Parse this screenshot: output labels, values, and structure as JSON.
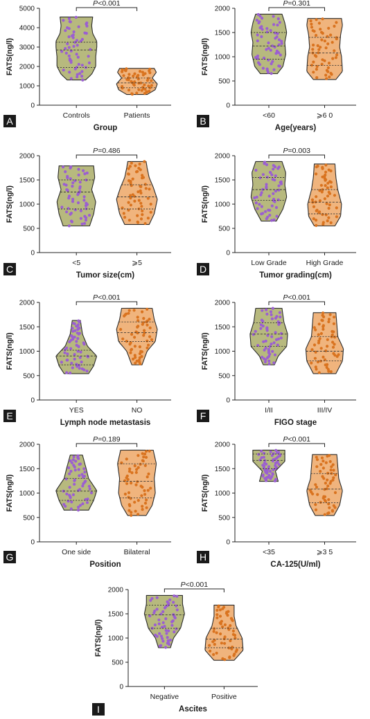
{
  "chart_data": [
    {
      "panel": "A",
      "type": "violin",
      "categories": [
        "Controls",
        "Patients"
      ],
      "xlabel": "Group",
      "ylabel": "FATS(ng/l)",
      "ylim": [
        0,
        5000
      ],
      "yticks": [
        "0",
        "1000",
        "2000",
        "3000",
        "4000",
        "5000"
      ],
      "pvalue": "P<0.001",
      "series": [
        {
          "category": "Controls",
          "min": 1300,
          "max": 4550,
          "q1": 1950,
          "median": 2850,
          "q3": 3250,
          "profile": [
            [
              1300,
              0.45
            ],
            [
              1600,
              0.75
            ],
            [
              2000,
              0.95
            ],
            [
              2500,
              0.95
            ],
            [
              3000,
              1.0
            ],
            [
              3300,
              1.0
            ],
            [
              3700,
              0.8
            ],
            [
              4100,
              0.75
            ],
            [
              4550,
              0.8
            ]
          ]
        },
        {
          "category": "Patients",
          "min": 550,
          "max": 1900,
          "q1": 900,
          "median": 1150,
          "q3": 1400,
          "profile": [
            [
              550,
              0.5
            ],
            [
              800,
              0.9
            ],
            [
              1100,
              1.0
            ],
            [
              1400,
              0.75
            ],
            [
              1700,
              0.95
            ],
            [
              1900,
              0.85
            ]
          ]
        }
      ]
    },
    {
      "panel": "B",
      "type": "violin",
      "categories": [
        "<60",
        "⩾6 0"
      ],
      "xlabel": "Age(years)",
      "ylabel": "FATS(ng/l)",
      "ylim": [
        0,
        2000
      ],
      "yticks": [
        "0",
        "500",
        "1000",
        "1500",
        "2000"
      ],
      "pvalue": "P=0.301",
      "series": [
        {
          "category": "<60",
          "min": 650,
          "max": 1880,
          "q1": 950,
          "median": 1220,
          "q3": 1500,
          "profile": [
            [
              650,
              0.45
            ],
            [
              800,
              0.75
            ],
            [
              1050,
              0.9
            ],
            [
              1300,
              0.85
            ],
            [
              1500,
              0.95
            ],
            [
              1700,
              0.85
            ],
            [
              1880,
              0.7
            ]
          ]
        },
        {
          "category": "⩾6 0",
          "min": 530,
          "max": 1790,
          "q1": 820,
          "median": 1080,
          "q3": 1400,
          "profile": [
            [
              530,
              0.6
            ],
            [
              700,
              0.95
            ],
            [
              1000,
              0.9
            ],
            [
              1200,
              0.8
            ],
            [
              1450,
              0.85
            ],
            [
              1650,
              0.95
            ],
            [
              1790,
              0.9
            ]
          ]
        }
      ]
    },
    {
      "panel": "C",
      "type": "violin",
      "categories": [
        "<5",
        "⩾5"
      ],
      "xlabel": "Tumor size(cm)",
      "ylabel": "FATS(ng/l)",
      "ylim": [
        0,
        2000
      ],
      "yticks": [
        "0",
        "500",
        "1000",
        "1500",
        "2000"
      ],
      "pvalue": "P=0.486",
      "series": [
        {
          "category": "<5",
          "min": 550,
          "max": 1790,
          "q1": 900,
          "median": 1250,
          "q3": 1500,
          "profile": [
            [
              550,
              0.65
            ],
            [
              800,
              0.85
            ],
            [
              1050,
              0.95
            ],
            [
              1300,
              0.75
            ],
            [
              1550,
              0.9
            ],
            [
              1790,
              0.85
            ]
          ]
        },
        {
          "category": "⩾5",
          "min": 580,
          "max": 1880,
          "q1": 900,
          "median": 1150,
          "q3": 1400,
          "profile": [
            [
              580,
              0.6
            ],
            [
              800,
              0.85
            ],
            [
              1100,
              1.0
            ],
            [
              1350,
              0.8
            ],
            [
              1550,
              0.6
            ],
            [
              1750,
              0.5
            ],
            [
              1880,
              0.45
            ]
          ]
        }
      ]
    },
    {
      "panel": "D",
      "type": "violin",
      "categories": [
        "Low Grade",
        "High Grade"
      ],
      "xlabel": "Tumor grading(cm)",
      "ylabel": "FATS(ng/l)",
      "ylim": [
        0,
        2000
      ],
      "yticks": [
        "0",
        "500",
        "1000",
        "1500",
        "2000"
      ],
      "pvalue": "P=0.003",
      "series": [
        {
          "category": "Low Grade",
          "min": 650,
          "max": 1880,
          "q1": 1080,
          "median": 1300,
          "q3": 1550,
          "profile": [
            [
              650,
              0.4
            ],
            [
              900,
              0.75
            ],
            [
              1150,
              0.95
            ],
            [
              1400,
              0.85
            ],
            [
              1650,
              0.9
            ],
            [
              1880,
              0.7
            ]
          ]
        },
        {
          "category": "High Grade",
          "min": 550,
          "max": 1830,
          "q1": 800,
          "median": 1040,
          "q3": 1300,
          "profile": [
            [
              550,
              0.55
            ],
            [
              750,
              0.85
            ],
            [
              1000,
              0.9
            ],
            [
              1300,
              0.7
            ],
            [
              1550,
              0.6
            ],
            [
              1830,
              0.55
            ]
          ]
        }
      ]
    },
    {
      "panel": "E",
      "type": "violin",
      "categories": [
        "YES",
        "NO"
      ],
      "xlabel": "Lymph node metastasis",
      "ylabel": "FATS(ng/l)",
      "ylim": [
        0,
        2000
      ],
      "yticks": [
        "0",
        "500",
        "1000",
        "1500",
        "2000"
      ],
      "pvalue": "P<0.001",
      "series": [
        {
          "category": "YES",
          "min": 540,
          "max": 1630,
          "q1": 720,
          "median": 900,
          "q3": 1020,
          "profile": [
            [
              540,
              0.6
            ],
            [
              700,
              0.85
            ],
            [
              900,
              1.0
            ],
            [
              1100,
              0.55
            ],
            [
              1350,
              0.3
            ],
            [
              1630,
              0.2
            ]
          ]
        },
        {
          "category": "NO",
          "min": 720,
          "max": 1880,
          "q1": 1200,
          "median": 1380,
          "q3": 1600,
          "profile": [
            [
              720,
              0.25
            ],
            [
              1000,
              0.5
            ],
            [
              1200,
              0.9
            ],
            [
              1450,
              1.0
            ],
            [
              1650,
              0.85
            ],
            [
              1880,
              0.75
            ]
          ]
        }
      ]
    },
    {
      "panel": "F",
      "type": "violin",
      "categories": [
        "I/II",
        "III/IV"
      ],
      "xlabel": "FIGO stage",
      "ylabel": "FATS(ng/l)",
      "ylim": [
        0,
        2000
      ],
      "yticks": [
        "0",
        "500",
        "1000",
        "1500",
        "2000"
      ],
      "pvalue": "P<0.001",
      "series": [
        {
          "category": "I/II",
          "min": 720,
          "max": 1880,
          "q1": 1100,
          "median": 1350,
          "q3": 1580,
          "profile": [
            [
              720,
              0.3
            ],
            [
              900,
              0.5
            ],
            [
              1100,
              0.95
            ],
            [
              1350,
              1.0
            ],
            [
              1600,
              0.8
            ],
            [
              1880,
              0.7
            ]
          ]
        },
        {
          "category": "III/IV",
          "min": 540,
          "max": 1790,
          "q1": 800,
          "median": 1000,
          "q3": 1300,
          "profile": [
            [
              540,
              0.6
            ],
            [
              800,
              0.95
            ],
            [
              1050,
              1.0
            ],
            [
              1300,
              0.7
            ],
            [
              1550,
              0.65
            ],
            [
              1790,
              0.6
            ]
          ]
        }
      ]
    },
    {
      "panel": "G",
      "type": "violin",
      "categories": [
        "One side",
        "Bilateral"
      ],
      "xlabel": "Position",
      "ylabel": "FATS(ng/l)",
      "ylim": [
        0,
        2000
      ],
      "yticks": [
        "0",
        "500",
        "1000",
        "1500",
        "2000"
      ],
      "pvalue": "P=0.189",
      "series": [
        {
          "category": "One side",
          "min": 650,
          "max": 1780,
          "q1": 850,
          "median": 1040,
          "q3": 1300,
          "profile": [
            [
              650,
              0.6
            ],
            [
              850,
              0.85
            ],
            [
              1050,
              1.0
            ],
            [
              1300,
              0.6
            ],
            [
              1550,
              0.45
            ],
            [
              1780,
              0.3
            ]
          ]
        },
        {
          "category": "Bilateral",
          "min": 540,
          "max": 1880,
          "q1": 900,
          "median": 1240,
          "q3": 1600,
          "profile": [
            [
              540,
              0.45
            ],
            [
              750,
              0.75
            ],
            [
              1000,
              0.9
            ],
            [
              1300,
              0.85
            ],
            [
              1600,
              0.95
            ],
            [
              1880,
              0.8
            ]
          ]
        }
      ]
    },
    {
      "panel": "H",
      "type": "violin",
      "categories": [
        "<35",
        "⩾3 5"
      ],
      "xlabel": "CA-125(U/ml)",
      "ylabel": "FATS(ng/l)",
      "ylim": [
        0,
        2000
      ],
      "yticks": [
        "0",
        "500",
        "1000",
        "1500",
        "2000"
      ],
      "pvalue": "P<0.001",
      "series": [
        {
          "category": "<35",
          "min": 1240,
          "max": 1880,
          "q1": 1500,
          "median": 1670,
          "q3": 1800,
          "profile": [
            [
              1240,
              0.5
            ],
            [
              1450,
              0.35
            ],
            [
              1650,
              0.85
            ],
            [
              1880,
              0.85
            ]
          ]
        },
        {
          "category": "⩾3 5",
          "min": 540,
          "max": 1790,
          "q1": 800,
          "median": 1080,
          "q3": 1400,
          "profile": [
            [
              540,
              0.5
            ],
            [
              750,
              0.8
            ],
            [
              1050,
              0.95
            ],
            [
              1300,
              0.75
            ],
            [
              1550,
              0.7
            ],
            [
              1790,
              0.65
            ]
          ]
        }
      ]
    },
    {
      "panel": "I",
      "type": "violin",
      "categories": [
        "Negative",
        "Positive"
      ],
      "xlabel": "Ascites",
      "ylabel": "FATS(ng/l)",
      "ylim": [
        0,
        2000
      ],
      "yticks": [
        "0",
        "500",
        "1000",
        "1500",
        "2000"
      ],
      "pvalue": "P<0.001",
      "series": [
        {
          "category": "Negative",
          "min": 800,
          "max": 1880,
          "q1": 1200,
          "median": 1480,
          "q3": 1680,
          "profile": [
            [
              800,
              0.3
            ],
            [
              1000,
              0.45
            ],
            [
              1200,
              0.8
            ],
            [
              1500,
              1.0
            ],
            [
              1700,
              0.9
            ],
            [
              1880,
              0.9
            ]
          ]
        },
        {
          "category": "Positive",
          "min": 540,
          "max": 1680,
          "q1": 800,
          "median": 980,
          "q3": 1200,
          "profile": [
            [
              540,
              0.5
            ],
            [
              750,
              0.95
            ],
            [
              1000,
              0.9
            ],
            [
              1250,
              0.6
            ],
            [
              1450,
              0.5
            ],
            [
              1680,
              0.5
            ]
          ]
        }
      ]
    }
  ],
  "colors": {
    "first_fill": "#b7b97e",
    "second_fill": "#f0b47d",
    "first_dots": "#9b5fd1",
    "second_dots": "#d9731f",
    "outline": "#2b2b2b",
    "panel_label_bg": "#1a1a1a",
    "panel_label_text": "#ffffff"
  }
}
